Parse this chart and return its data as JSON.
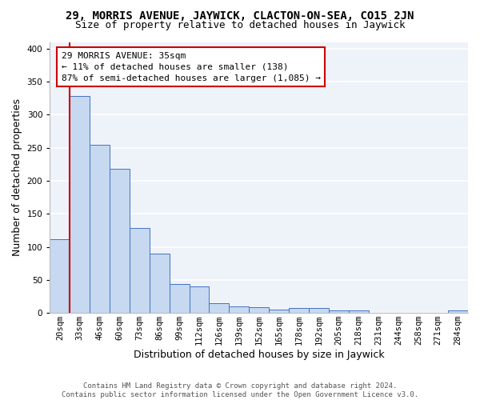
{
  "title": "29, MORRIS AVENUE, JAYWICK, CLACTON-ON-SEA, CO15 2JN",
  "subtitle": "Size of property relative to detached houses in Jaywick",
  "xlabel": "Distribution of detached houses by size in Jaywick",
  "ylabel": "Number of detached properties",
  "categories": [
    "20sqm",
    "33sqm",
    "46sqm",
    "60sqm",
    "73sqm",
    "86sqm",
    "99sqm",
    "112sqm",
    "126sqm",
    "139sqm",
    "152sqm",
    "165sqm",
    "178sqm",
    "192sqm",
    "205sqm",
    "218sqm",
    "231sqm",
    "244sqm",
    "258sqm",
    "271sqm",
    "284sqm"
  ],
  "values": [
    112,
    328,
    255,
    218,
    129,
    90,
    44,
    40,
    15,
    10,
    9,
    5,
    7,
    8,
    4,
    4,
    0,
    0,
    0,
    0,
    4
  ],
  "bar_color": "#c6d9f0",
  "bar_edge_color": "#4472c4",
  "annotation_text": "29 MORRIS AVENUE: 35sqm\n← 11% of detached houses are smaller (138)\n87% of semi-detached houses are larger (1,085) →",
  "annotation_box_color": "#ffffff",
  "annotation_box_edge_color": "#cc0000",
  "vline_color": "#cc0000",
  "ylim": [
    0,
    410
  ],
  "yticks": [
    0,
    50,
    100,
    150,
    200,
    250,
    300,
    350,
    400
  ],
  "background_color": "#eef2f9",
  "grid_color": "#ffffff",
  "footer": "Contains HM Land Registry data © Crown copyright and database right 2024.\nContains public sector information licensed under the Open Government Licence v3.0.",
  "title_fontsize": 10,
  "subtitle_fontsize": 9,
  "xlabel_fontsize": 9,
  "ylabel_fontsize": 9,
  "tick_fontsize": 7.5,
  "annotation_fontsize": 8,
  "footer_fontsize": 6.5
}
